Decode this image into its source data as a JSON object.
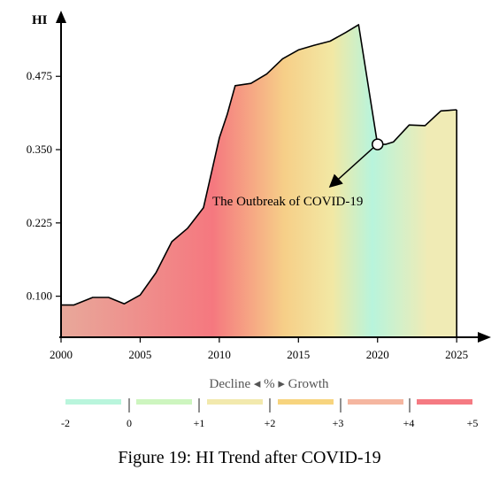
{
  "chart_data": {
    "type": "area",
    "ylabel": "HI",
    "x_ticks": [
      2000,
      2005,
      2010,
      2015,
      2020,
      2025
    ],
    "y_ticks": [
      "0.100",
      "0.225",
      "0.350",
      "0.475"
    ],
    "xlim": [
      2000,
      2026.5
    ],
    "ylim": [
      0.03,
      0.575
    ],
    "x": [
      2000,
      2000.8,
      2002,
      2003,
      2004,
      2005,
      2006,
      2007,
      2008,
      2009,
      2009.5,
      2010,
      2010.5,
      2011,
      2012,
      2013,
      2014,
      2015,
      2016,
      2017,
      2018,
      2018.8,
      2020,
      2020.5,
      2021,
      2022,
      2023,
      2024,
      2025
    ],
    "values": [
      0.085,
      0.085,
      0.098,
      0.098,
      0.087,
      0.102,
      0.14,
      0.193,
      0.216,
      0.251,
      0.31,
      0.37,
      0.41,
      0.459,
      0.463,
      0.479,
      0.505,
      0.52,
      0.528,
      0.535,
      0.55,
      0.563,
      0.359,
      0.359,
      0.363,
      0.392,
      0.391,
      0.416,
      0.418
    ],
    "annotation": {
      "text": "The Outbreak of COVID-19",
      "point_x": 2020,
      "point_y": 0.359
    },
    "color_scale": {
      "title": "Decline ◂ % ▸ Growth",
      "tick_labels": [
        "-2",
        "0",
        "+1",
        "+2",
        "+3",
        "+4",
        "+5"
      ],
      "segment_colors": [
        "#b9f5dc",
        "#cdf5bf",
        "#f2e9ad",
        "#f7d47e",
        "#f5b6a0",
        "#f57a82"
      ]
    },
    "gradient_colors": [
      "#e8a89a",
      "#f5787f",
      "#f6cf88",
      "#f2e8a4",
      "#b8f4dc",
      "#f0ebb5"
    ]
  },
  "caption": "Figure 19: HI Trend after COVID-19"
}
